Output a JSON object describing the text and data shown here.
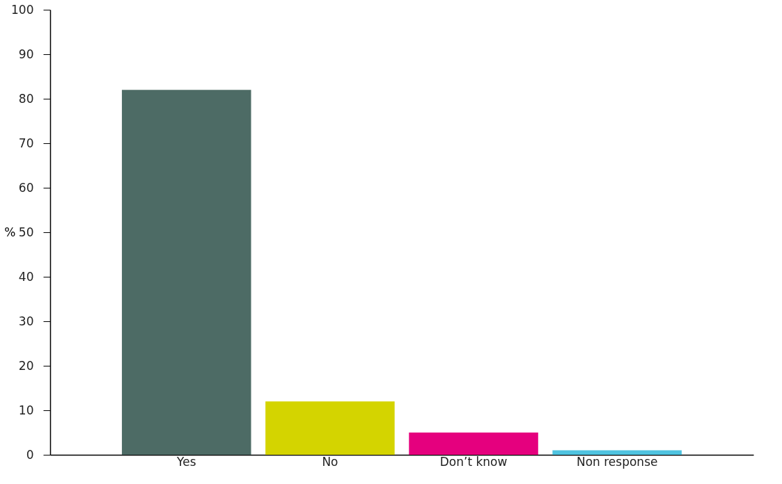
{
  "chart_data": {
    "type": "bar",
    "ylabel": "%",
    "categories": [
      "Yes",
      "No",
      "Don’t know",
      "Non response"
    ],
    "values": [
      82,
      12,
      5,
      1
    ],
    "colors": [
      "#4d6b65",
      "#d4d400",
      "#e5007e",
      "#4fc3e0"
    ],
    "ylim": [
      0,
      100
    ],
    "yticks": [
      0,
      10,
      20,
      30,
      40,
      50,
      60,
      70,
      80,
      90,
      100
    ],
    "grid": false
  }
}
